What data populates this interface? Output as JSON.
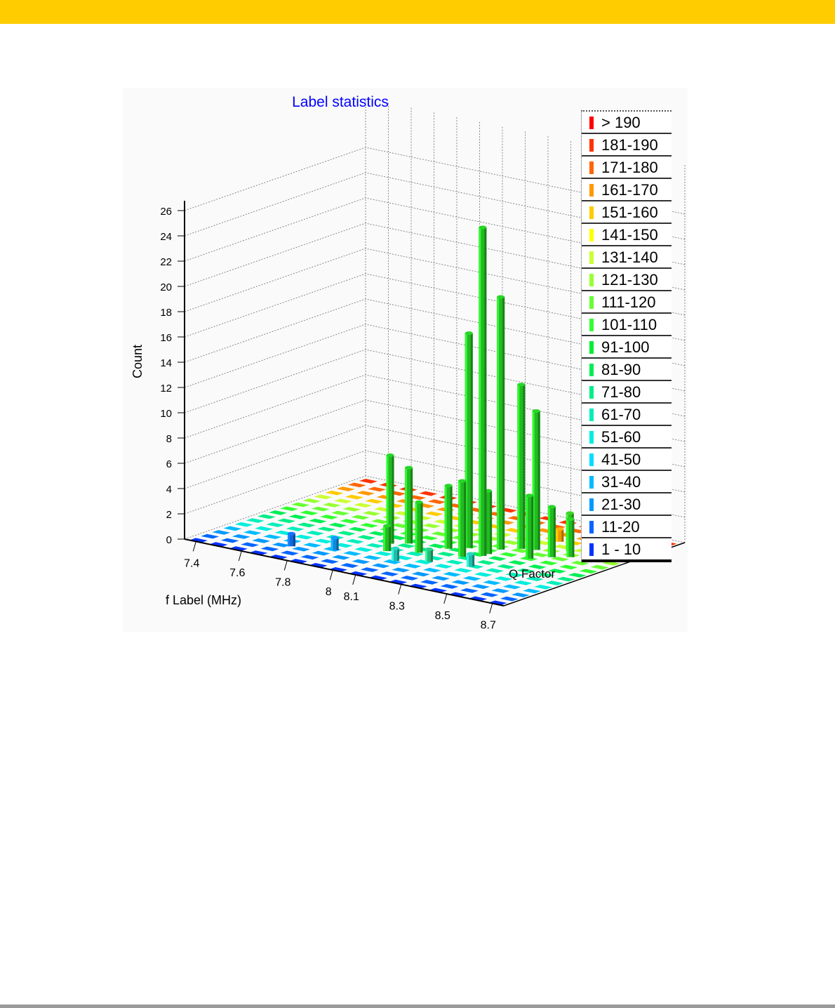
{
  "header": {
    "band_color": "#ffcc00"
  },
  "footer": {
    "rule_color": "#9a9a9a"
  },
  "chart_data": {
    "type": "bar3d",
    "title": "Label statistics",
    "title_color": "#0000ff",
    "xlabel": "f Label (MHz)",
    "ylabel": "Q Factor",
    "zlabel": "Count",
    "x_ticks": [
      "7.4",
      "7.6",
      "7.8",
      "8",
      "8.1",
      "8.3",
      "8.5",
      "8.7"
    ],
    "y_ticks": [],
    "z_ticks": [
      "0",
      "2",
      "4",
      "6",
      "8",
      "10",
      "12",
      "14",
      "16",
      "18",
      "20",
      "22",
      "24",
      "26"
    ],
    "zlim": [
      0,
      26
    ],
    "grid": true,
    "legend_position": "right",
    "legend": [
      {
        "label": "> 190",
        "color": "#ff0000"
      },
      {
        "label": "181-190",
        "color": "#ff3300"
      },
      {
        "label": "171-180",
        "color": "#ff6600"
      },
      {
        "label": "161-170",
        "color": "#ff9900"
      },
      {
        "label": "151-160",
        "color": "#ffcc00"
      },
      {
        "label": "141-150",
        "color": "#ffff00"
      },
      {
        "label": "131-140",
        "color": "#ccff33"
      },
      {
        "label": "121-130",
        "color": "#99ff33"
      },
      {
        "label": "111-120",
        "color": "#66ff33"
      },
      {
        "label": "101-110",
        "color": "#33ff33"
      },
      {
        "label": "91-100",
        "color": "#00ee33"
      },
      {
        "label": "81-90",
        "color": "#00ee55"
      },
      {
        "label": "71-80",
        "color": "#00ee88"
      },
      {
        "label": "61-70",
        "color": "#00eebb"
      },
      {
        "label": "51-60",
        "color": "#00eedd"
      },
      {
        "label": "41-50",
        "color": "#00ddff"
      },
      {
        "label": "31-40",
        "color": "#00bbff"
      },
      {
        "label": "21-30",
        "color": "#0099ff"
      },
      {
        "label": "11-20",
        "color": "#0066ff"
      },
      {
        "label": "1 - 10",
        "color": "#0033ff"
      }
    ],
    "bars": [
      {
        "x": 8.3,
        "q": 45,
        "count": 26,
        "color": "#22bb22"
      },
      {
        "x": 8.3,
        "q": 55,
        "count": 20,
        "color": "#22bb22"
      },
      {
        "x": 8.2,
        "q": 50,
        "count": 17,
        "color": "#22bb22"
      },
      {
        "x": 8.35,
        "q": 60,
        "count": 13,
        "color": "#22bb22"
      },
      {
        "x": 8.4,
        "q": 62,
        "count": 11,
        "color": "#22bb22"
      },
      {
        "x": 7.95,
        "q": 38,
        "count": 7,
        "color": "#22bb22"
      },
      {
        "x": 8.0,
        "q": 42,
        "count": 6,
        "color": "#22bb22"
      },
      {
        "x": 8.25,
        "q": 40,
        "count": 6,
        "color": "#22bb22"
      },
      {
        "x": 8.15,
        "q": 45,
        "count": 5,
        "color": "#22bb22"
      },
      {
        "x": 8.3,
        "q": 48,
        "count": 5,
        "color": "#22bb22"
      },
      {
        "x": 8.45,
        "q": 52,
        "count": 5,
        "color": "#22bb22"
      },
      {
        "x": 8.1,
        "q": 35,
        "count": 4,
        "color": "#22bb22"
      },
      {
        "x": 8.5,
        "q": 58,
        "count": 4,
        "color": "#22bb22"
      },
      {
        "x": 8.5,
        "q": 68,
        "count": 3,
        "color": "#33bb22"
      },
      {
        "x": 8.55,
        "q": 62,
        "count": 3,
        "color": "#22bb22"
      },
      {
        "x": 8.6,
        "q": 66,
        "count": 2,
        "color": "#22bb22"
      },
      {
        "x": 8.0,
        "q": 30,
        "count": 2,
        "color": "#22bb22"
      },
      {
        "x": 8.65,
        "q": 70,
        "count": 1,
        "color": "#22bb22"
      },
      {
        "x": 8.4,
        "q": 75,
        "count": 1,
        "color": "#ee9900"
      },
      {
        "x": 8.5,
        "q": 95,
        "count": 1,
        "color": "#dd0000"
      },
      {
        "x": 8.2,
        "q": 28,
        "count": 1,
        "color": "#22bb77"
      },
      {
        "x": 8.35,
        "q": 32,
        "count": 1,
        "color": "#22bbaa"
      },
      {
        "x": 8.1,
        "q": 22,
        "count": 1,
        "color": "#22bbaa"
      },
      {
        "x": 7.85,
        "q": 20,
        "count": 1,
        "color": "#1188dd"
      },
      {
        "x": 7.7,
        "q": 15,
        "count": 1,
        "color": "#1166dd"
      }
    ]
  }
}
